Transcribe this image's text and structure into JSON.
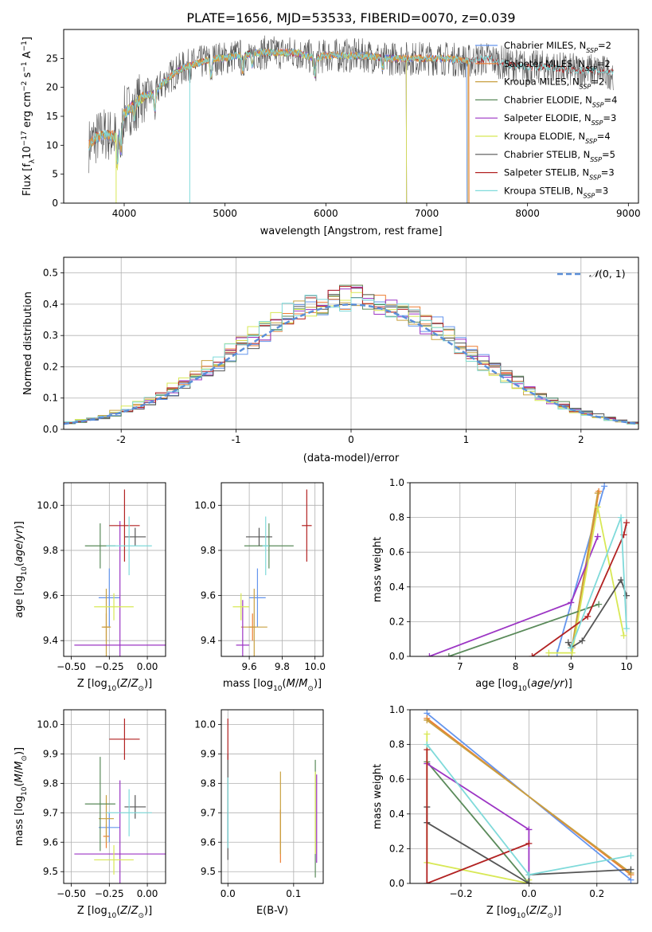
{
  "figure_title": "PLATE=1656, MJD=53533, FIBERID=0070, z=0.039",
  "colors": [
    "#6495ed",
    "#ed7d31",
    "#c8a040",
    "#5a8a5a",
    "#9c35c4",
    "#d8e855",
    "#555555",
    "#b22222",
    "#7fdada"
  ],
  "legend_entries": [
    "Chabrier MILES, N_SSP=2",
    "Salpeter MILES, N_SSP=2",
    "Kroupa MILES, N_SSP=2",
    "Chabrier ELODIE, N_SSP=4",
    "Salpeter ELODIE, N_SSP=3",
    "Kroupa ELODIE, N_SSP=4",
    "Chabrier STELIB, N_SSP=5",
    "Salpeter STELIB, N_SSP=3",
    "Kroupa STELIB, N_SSP=3"
  ],
  "chart_data": [
    {
      "id": "spectrum",
      "type": "line",
      "title": "PLATE=1656, MJD=53533, FIBERID=0070, z=0.039",
      "xlabel": "wavelength [Angstrom, rest frame]",
      "ylabel": "Flux [f_λ 10^-17 erg cm^-2 s^-1 A^-1]",
      "xlim": [
        3400,
        9100
      ],
      "ylim": [
        0,
        30
      ],
      "xticks": [
        4000,
        5000,
        6000,
        7000,
        8000,
        9000
      ],
      "yticks": [
        0,
        5,
        10,
        15,
        20,
        25
      ],
      "grid": false,
      "legend": "right",
      "continuum": {
        "x": [
          3650,
          3700,
          3800,
          3900,
          3950,
          4000,
          4100,
          4200,
          4300,
          4400,
          4500,
          4600,
          4700,
          4800,
          4900,
          5000,
          5100,
          5200,
          5300,
          5400,
          5500,
          5600,
          5700,
          5800,
          5900,
          6000,
          6200,
          6400,
          6600,
          6800,
          7000,
          7200,
          7400,
          7600,
          7800,
          8000,
          8200,
          8400,
          8600,
          8850
        ],
        "y": [
          10,
          11,
          12,
          11.5,
          13,
          15.5,
          17,
          18.5,
          19,
          21,
          22.5,
          23.5,
          24,
          24.5,
          25,
          25,
          25.5,
          25.5,
          26,
          26,
          26,
          26,
          26,
          25.5,
          25,
          25.5,
          25.5,
          25.5,
          25,
          25,
          25,
          25,
          24.5,
          25,
          24,
          23.5,
          23.5,
          23,
          23,
          22.5
        ]
      },
      "series": [
        {
          "name": "Chabrier MILES, N_SSP=2",
          "range": [
            3650,
            7400
          ]
        },
        {
          "name": "Salpeter MILES, N_SSP=2",
          "range": [
            3650,
            7420
          ]
        },
        {
          "name": "Kroupa MILES, N_SSP=2",
          "range": [
            3650,
            7410
          ]
        },
        {
          "name": "Chabrier ELODIE, N_SSP=4",
          "range": [
            3900,
            6800
          ]
        },
        {
          "name": "Salpeter ELODIE, N_SSP=3",
          "range": [
            3900,
            6800
          ]
        },
        {
          "name": "Kroupa ELODIE, N_SSP=4",
          "range": [
            3900,
            6800
          ]
        },
        {
          "name": "Chabrier STELIB, N_SSP=5",
          "range": [
            3650,
            8850
          ]
        },
        {
          "name": "Salpeter STELIB, N_SSP=3",
          "range": [
            3650,
            8850
          ]
        },
        {
          "name": "Kroupa STELIB, N_SSP=3",
          "range": [
            3650,
            8850
          ]
        }
      ]
    },
    {
      "id": "residuals",
      "type": "area",
      "xlabel": "(data-model)/error",
      "ylabel": "Normed distribution",
      "xlim": [
        -2.5,
        2.5
      ],
      "ylim": [
        0,
        0.55
      ],
      "xticks": [
        -2,
        -1,
        0,
        1,
        2
      ],
      "yticks": [
        0.0,
        0.1,
        0.2,
        0.3,
        0.4,
        0.5
      ],
      "grid": true,
      "legend": "top-right",
      "reference_curve": "N(0,1)",
      "bin_width": 0.1
    },
    {
      "id": "z_age",
      "type": "scatter",
      "xlabel": "Z [log10(Z/Z_sun)]",
      "ylabel": "age [log10(age/yr)]",
      "xlim": [
        -0.55,
        0.12
      ],
      "ylim": [
        9.33,
        10.1
      ],
      "xticks": [
        -0.5,
        -0.25,
        0.0
      ],
      "yticks": [
        9.4,
        9.6,
        9.8,
        10.0
      ],
      "grid": true,
      "points": [
        {
          "series": "Chabrier MILES",
          "x": -0.25,
          "xerr": 0.07,
          "y": 9.59,
          "yerr": 0.13
        },
        {
          "series": "Salpeter MILES",
          "x": -0.27,
          "xerr": 0.02,
          "y": 9.46,
          "yerr": 0.06
        },
        {
          "series": "Kroupa MILES",
          "x": -0.27,
          "xerr": 0.03,
          "y": 9.46,
          "yerr": 0.17
        },
        {
          "series": "Chabrier ELODIE",
          "x": -0.31,
          "xerr": 0.1,
          "y": 9.82,
          "yerr": 0.1
        },
        {
          "series": "Salpeter ELODIE",
          "x": -0.18,
          "xerr": 0.3,
          "y": 9.38,
          "yerr": 0.55
        },
        {
          "series": "Kroupa ELODIE",
          "x": -0.22,
          "xerr": 0.13,
          "y": 9.55,
          "yerr": 0.06
        },
        {
          "series": "Chabrier STELIB",
          "x": -0.08,
          "xerr": 0.07,
          "y": 9.86,
          "yerr": 0.04
        },
        {
          "series": "Salpeter STELIB",
          "x": -0.15,
          "xerr": 0.1,
          "y": 9.91,
          "yerr": 0.16
        },
        {
          "series": "Kroupa STELIB",
          "x": -0.12,
          "xerr": 0.15,
          "y": 9.82,
          "yerr": 0.13
        }
      ]
    },
    {
      "id": "mass_age",
      "type": "scatter",
      "xlabel": "mass [log10(M/M_sun)]",
      "ylabel": "",
      "xlim": [
        9.43,
        10.05
      ],
      "ylim": [
        9.33,
        10.1
      ],
      "xticks": [
        9.6,
        9.8,
        10.0
      ],
      "yticks": [
        9.4,
        9.6,
        9.8,
        10.0
      ],
      "grid": true,
      "points": [
        {
          "series": "Chabrier MILES",
          "x": 9.65,
          "xerr": 0.05,
          "y": 9.59,
          "yerr": 0.13
        },
        {
          "series": "Salpeter MILES",
          "x": 9.62,
          "xerr": 0.02,
          "y": 9.46,
          "yerr": 0.06
        },
        {
          "series": "Kroupa MILES",
          "x": 9.63,
          "xerr": 0.08,
          "y": 9.46,
          "yerr": 0.17
        },
        {
          "series": "Chabrier ELODIE",
          "x": 9.72,
          "xerr": 0.15,
          "y": 9.82,
          "yerr": 0.1
        },
        {
          "series": "Salpeter ELODIE",
          "x": 9.56,
          "xerr": 0.04,
          "y": 9.38,
          "yerr": 0.2
        },
        {
          "series": "Kroupa ELODIE",
          "x": 9.55,
          "xerr": 0.05,
          "y": 9.55,
          "yerr": 0.06
        },
        {
          "series": "Chabrier STELIB",
          "x": 9.66,
          "xerr": 0.08,
          "y": 9.86,
          "yerr": 0.04
        },
        {
          "series": "Salpeter STELIB",
          "x": 9.95,
          "xerr": 0.03,
          "y": 9.91,
          "yerr": 0.16
        },
        {
          "series": "Kroupa STELIB",
          "x": 9.7,
          "xerr": 0.02,
          "y": 9.82,
          "yerr": 0.13
        }
      ]
    },
    {
      "id": "age_weight",
      "type": "line",
      "xlabel": "age [log10(age/yr)]",
      "ylabel": "mass weight",
      "xlim": [
        6.1,
        10.2
      ],
      "ylim": [
        0,
        1
      ],
      "xticks": [
        7,
        8,
        9,
        10
      ],
      "yticks": [
        0.0,
        0.2,
        0.4,
        0.6,
        0.8,
        1.0
      ],
      "grid": true,
      "series": [
        {
          "series": "Chabrier MILES",
          "x": [
            8.75,
            9.6
          ],
          "y": [
            0.02,
            0.98
          ]
        },
        {
          "series": "Salpeter MILES",
          "x": [
            9.02,
            9.5
          ],
          "y": [
            0.05,
            0.95
          ]
        },
        {
          "series": "Kroupa MILES",
          "x": [
            9.02,
            9.48
          ],
          "y": [
            0.06,
            0.94
          ]
        },
        {
          "series": "Chabrier ELODIE",
          "x": [
            6.8,
            9.5
          ],
          "y": [
            0.0,
            0.3
          ]
        },
        {
          "series": "Salpeter ELODIE",
          "x": [
            6.45,
            9.0,
            9.48
          ],
          "y": [
            0.0,
            0.31,
            0.69
          ]
        },
        {
          "series": "Kroupa ELODIE",
          "x": [
            8.6,
            9.02,
            9.48,
            9.95
          ],
          "y": [
            0.02,
            0.02,
            0.86,
            0.12
          ]
        },
        {
          "series": "Chabrier STELIB",
          "x": [
            8.95,
            9.0,
            9.2,
            9.9,
            10.0
          ],
          "y": [
            0.08,
            0.05,
            0.09,
            0.44,
            0.35
          ]
        },
        {
          "series": "Salpeter STELIB",
          "x": [
            8.3,
            9.3,
            9.95,
            10.0
          ],
          "y": [
            0.0,
            0.23,
            0.7,
            0.77
          ]
        },
        {
          "series": "Kroupa STELIB",
          "x": [
            9.0,
            9.9,
            10.0
          ],
          "y": [
            0.05,
            0.8,
            0.16
          ]
        }
      ]
    },
    {
      "id": "z_mass",
      "type": "scatter",
      "xlabel": "Z [log10(Z/Z_sun)]",
      "ylabel": "mass [log10(M/M_sun)]",
      "xlim": [
        -0.55,
        0.12
      ],
      "ylim": [
        9.46,
        10.05
      ],
      "xticks": [
        -0.5,
        -0.25,
        0.0
      ],
      "yticks": [
        9.5,
        9.6,
        9.7,
        9.8,
        9.9,
        10.0
      ],
      "grid": true,
      "points": [
        {
          "series": "Chabrier MILES",
          "x": -0.25,
          "xerr": 0.07,
          "y": 9.65,
          "yerr": 0.05
        },
        {
          "series": "Salpeter MILES",
          "x": -0.27,
          "xerr": 0.02,
          "y": 9.62,
          "yerr": 0.04
        },
        {
          "series": "Kroupa MILES",
          "x": -0.27,
          "xerr": 0.05,
          "y": 9.68,
          "yerr": 0.08
        },
        {
          "series": "Chabrier ELODIE",
          "x": -0.31,
          "xerr": 0.1,
          "y": 9.73,
          "yerr": 0.16
        },
        {
          "series": "Salpeter ELODIE",
          "x": -0.18,
          "xerr": 0.3,
          "y": 9.56,
          "yerr": 0.25
        },
        {
          "series": "Kroupa ELODIE",
          "x": -0.22,
          "xerr": 0.13,
          "y": 9.54,
          "yerr": 0.05
        },
        {
          "series": "Chabrier STELIB",
          "x": -0.08,
          "xerr": 0.07,
          "y": 9.72,
          "yerr": 0.04
        },
        {
          "series": "Salpeter STELIB",
          "x": -0.15,
          "xerr": 0.1,
          "y": 9.95,
          "yerr": 0.07
        },
        {
          "series": "Kroupa STELIB",
          "x": -0.12,
          "xerr": 0.15,
          "y": 9.7,
          "yerr": 0.08
        }
      ]
    },
    {
      "id": "ebv_mass",
      "type": "scatter",
      "xlabel": "E(B-V)",
      "ylabel": "",
      "xlim": [
        -0.01,
        0.145
      ],
      "ylim": [
        9.46,
        10.05
      ],
      "xticks": [
        0.0,
        0.1
      ],
      "yticks": [
        9.5,
        9.6,
        9.7,
        9.8,
        9.9,
        10.0
      ],
      "grid": true,
      "points": [
        {
          "series": "Chabrier MILES",
          "x": 0.0,
          "y": 9.65,
          "yerr": 0.05
        },
        {
          "series": "Salpeter MILES",
          "x": 0.08,
          "y": 9.62,
          "yerr": 0.09
        },
        {
          "series": "Kroupa MILES",
          "x": 0.08,
          "y": 9.7,
          "yerr": 0.14
        },
        {
          "series": "Chabrier ELODIE",
          "x": 0.133,
          "y": 9.68,
          "yerr": 0.2
        },
        {
          "series": "Salpeter ELODIE",
          "x": 0.135,
          "y": 9.68,
          "yerr": 0.15
        },
        {
          "series": "Kroupa ELODIE",
          "x": 0.133,
          "y": 9.7,
          "yerr": 0.14
        },
        {
          "series": "Chabrier STELIB",
          "x": 0.0,
          "y": 9.72,
          "yerr": 0.18
        },
        {
          "series": "Salpeter STELIB",
          "x": 0.0,
          "y": 9.95,
          "yerr": 0.07
        },
        {
          "series": "Kroupa STELIB",
          "x": 0.0,
          "y": 9.7,
          "yerr": 0.12
        }
      ]
    },
    {
      "id": "z_weight",
      "type": "line",
      "xlabel": "Z [log10(Z/Z_sun)]",
      "ylabel": "mass weight",
      "xlim": [
        -0.35,
        0.32
      ],
      "ylim": [
        0,
        1
      ],
      "xticks": [
        -0.2,
        0.0,
        0.2
      ],
      "yticks": [
        0.0,
        0.2,
        0.4,
        0.6,
        0.8,
        1.0
      ],
      "grid": true,
      "series": [
        {
          "series": "Chabrier MILES",
          "x": [
            -0.3,
            0.3
          ],
          "y": [
            0.98,
            0.02
          ]
        },
        {
          "series": "Salpeter MILES",
          "x": [
            -0.3,
            0.3
          ],
          "y": [
            0.95,
            0.05
          ]
        },
        {
          "series": "Kroupa MILES",
          "x": [
            -0.3,
            0.3
          ],
          "y": [
            0.94,
            0.06
          ]
        },
        {
          "series": "Chabrier ELODIE",
          "x": [
            -0.3,
            0.0
          ],
          "y": [
            0.7,
            0.0
          ]
        },
        {
          "series": "Salpeter ELODIE",
          "x": [
            -0.3,
            0.0,
            0.0
          ],
          "y": [
            0.69,
            0.31,
            0.0
          ]
        },
        {
          "series": "Kroupa ELODIE",
          "x": [
            -0.3,
            -0.3,
            0.0,
            0.0
          ],
          "y": [
            0.86,
            0.12,
            0.0,
            0.02
          ]
        },
        {
          "series": "Chabrier STELIB",
          "x": [
            -0.3,
            -0.3,
            0.0,
            0.0,
            0.3
          ],
          "y": [
            0.44,
            0.35,
            0.0,
            0.05,
            0.08
          ]
        },
        {
          "series": "Salpeter STELIB",
          "x": [
            -0.3,
            -0.3,
            0.0
          ],
          "y": [
            0.77,
            0.0,
            0.23
          ]
        },
        {
          "series": "Kroupa STELIB",
          "x": [
            -0.3,
            0.0,
            0.3
          ],
          "y": [
            0.8,
            0.05,
            0.16
          ]
        }
      ]
    }
  ]
}
